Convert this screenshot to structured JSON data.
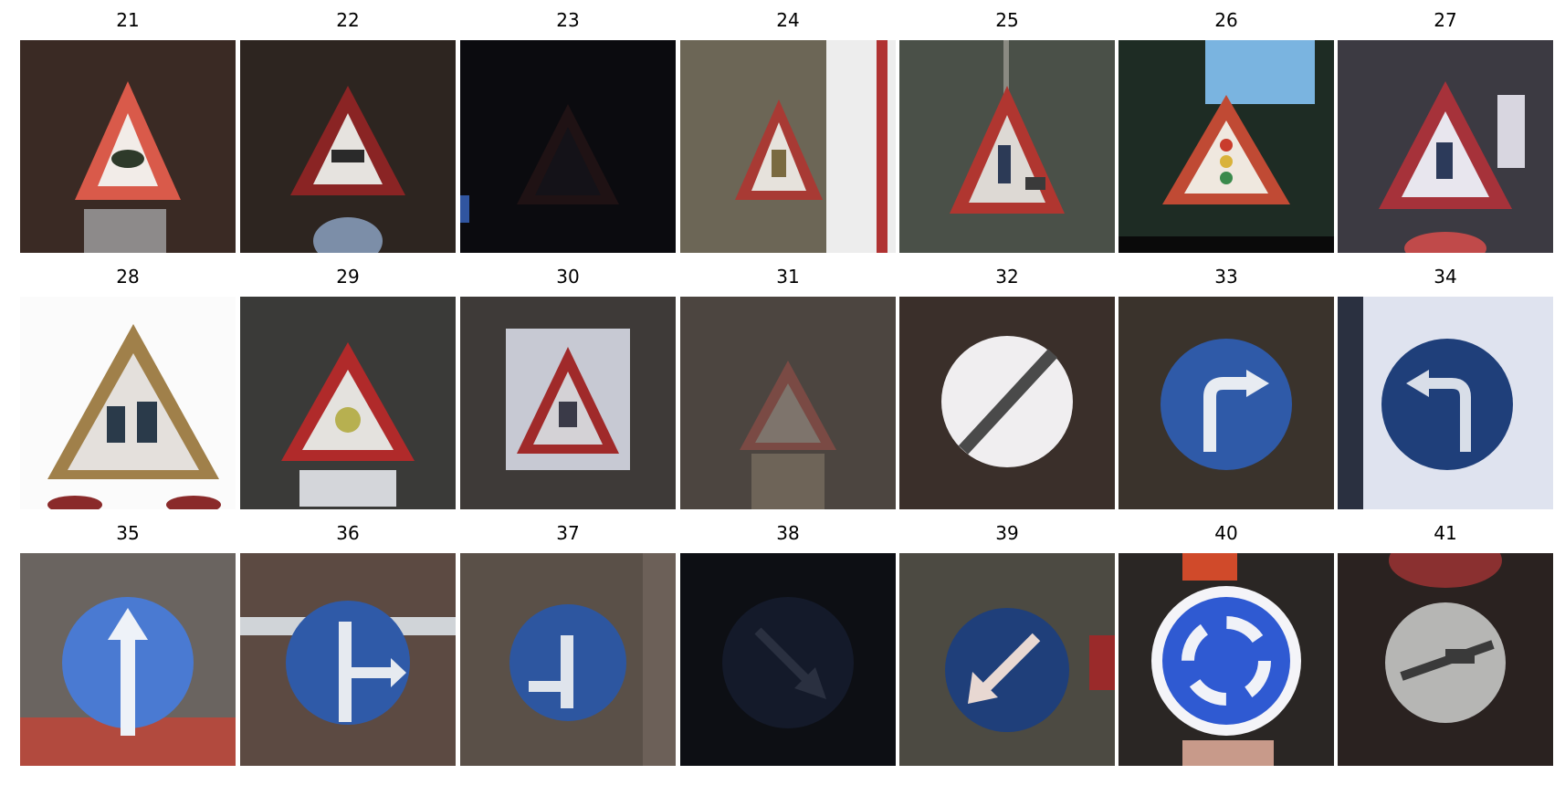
{
  "figure": {
    "panels": [
      {
        "label": "21",
        "icon": "warning-triangle-icon"
      },
      {
        "label": "22",
        "icon": "warning-triangle-icon"
      },
      {
        "label": "23",
        "icon": "warning-triangle-icon"
      },
      {
        "label": "24",
        "icon": "warning-triangle-icon"
      },
      {
        "label": "25",
        "icon": "warning-triangle-icon"
      },
      {
        "label": "26",
        "icon": "warning-triangle-icon"
      },
      {
        "label": "27",
        "icon": "warning-triangle-icon"
      },
      {
        "label": "28",
        "icon": "warning-triangle-icon"
      },
      {
        "label": "29",
        "icon": "warning-triangle-icon"
      },
      {
        "label": "30",
        "icon": "warning-triangle-icon"
      },
      {
        "label": "31",
        "icon": "warning-triangle-icon"
      },
      {
        "label": "32",
        "icon": "end-of-restriction-icon"
      },
      {
        "label": "33",
        "icon": "turn-right-ahead-icon"
      },
      {
        "label": "34",
        "icon": "turn-left-ahead-icon"
      },
      {
        "label": "35",
        "icon": "ahead-only-icon"
      },
      {
        "label": "36",
        "icon": "straight-or-right-icon"
      },
      {
        "label": "37",
        "icon": "straight-or-left-icon"
      },
      {
        "label": "38",
        "icon": "keep-right-icon"
      },
      {
        "label": "39",
        "icon": "keep-left-icon"
      },
      {
        "label": "40",
        "icon": "roundabout-icon"
      },
      {
        "label": "41",
        "icon": "end-of-no-passing-icon"
      }
    ]
  },
  "colors": {
    "warning_red": "#b32222",
    "mandatory_blue": "#2f5aa8"
  }
}
